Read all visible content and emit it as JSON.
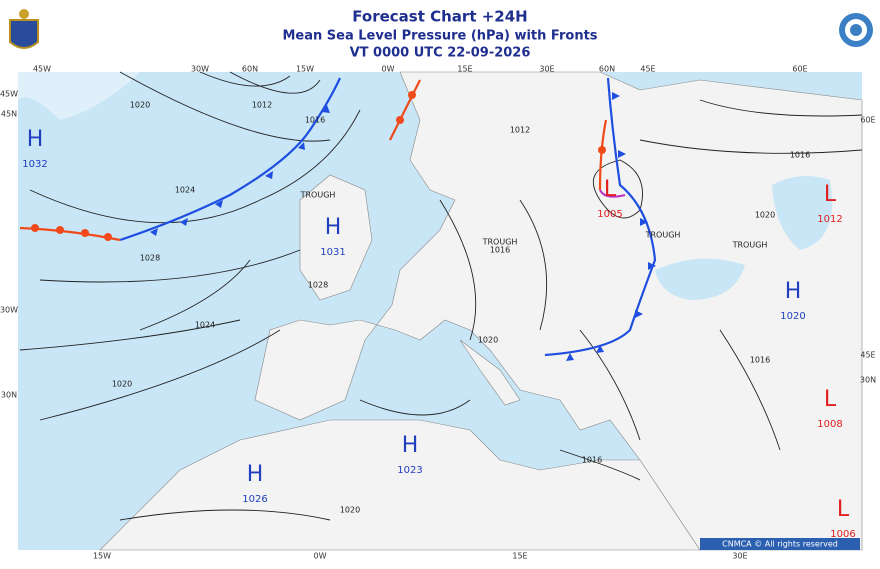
{
  "header": {
    "title": "Forecast Chart +24H",
    "subtitle": "Mean Sea Level Pressure (hPa) with Fronts",
    "valid_time": "VT 0000 UTC 22-09-2026"
  },
  "pressure_centers": [
    {
      "type": "H",
      "value": 1032
    },
    {
      "type": "H",
      "value": 1031
    },
    {
      "type": "H",
      "value": 1020
    },
    {
      "type": "H",
      "value": 1023
    },
    {
      "type": "H",
      "value": 1026
    },
    {
      "type": "L",
      "value": 1005
    },
    {
      "type": "L",
      "value": 1012
    },
    {
      "type": "L",
      "value": 1008
    },
    {
      "type": "L",
      "value": 1006
    }
  ],
  "isobar_labels": [
    1012,
    1016,
    1020,
    1024,
    1028,
    1020,
    1024,
    1028,
    1020,
    1016,
    1020,
    1016,
    1016,
    1012,
    1016,
    1020
  ],
  "trough_labels": [
    "TROUGH",
    "TROUGH",
    "TROUGH",
    "TROUGH"
  ],
  "graticule": {
    "top": [
      "45W",
      "30W",
      "60N",
      "15W",
      "0W",
      "15E",
      "30E",
      "60N",
      "45E",
      "60E"
    ],
    "bottom": [
      "15W",
      "0W",
      "15E",
      "30E"
    ],
    "left": [
      "45W",
      "45N",
      "30W",
      "30N"
    ],
    "right": [
      "60E",
      "45E",
      "30N"
    ]
  },
  "copyright": "CNMCA © All rights reserved"
}
